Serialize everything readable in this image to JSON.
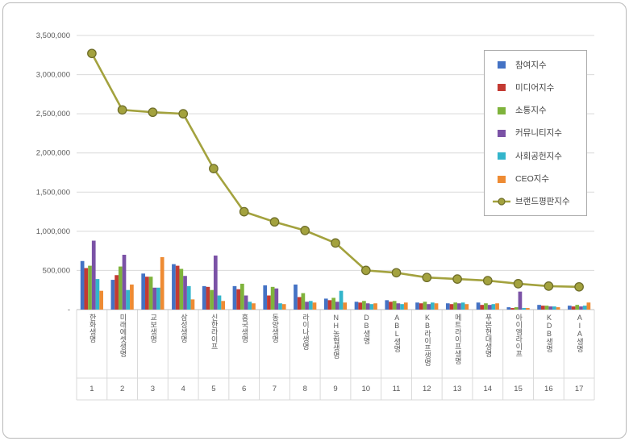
{
  "chart_data": {
    "type": "bar+line",
    "title": "",
    "legend_position": "top-right",
    "grid": "horizontal",
    "categories": [
      "한화생명",
      "미래에셋생명",
      "교보생명",
      "삼성생명",
      "신한라이프",
      "흥국생명",
      "동양생명",
      "라이나생명",
      "NH농협생명",
      "DB생명",
      "ABL생명",
      "KB라이프생명",
      "메트라이프생명",
      "푸본현대생명",
      "아이엠라이프",
      "KDB생명",
      "AIA생명"
    ],
    "ranks": [
      "1",
      "2",
      "3",
      "4",
      "5",
      "6",
      "7",
      "8",
      "9",
      "10",
      "11",
      "12",
      "13",
      "14",
      "15",
      "16",
      "17"
    ],
    "y_axis": {
      "max": 3500000,
      "ticks": [
        {
          "value": 3500000,
          "label": "3,500,000"
        },
        {
          "value": 3000000,
          "label": "3,000,000"
        },
        {
          "value": 2500000,
          "label": "2,500,000"
        },
        {
          "value": 2000000,
          "label": "2,000,000"
        },
        {
          "value": 1500000,
          "label": "1,500,000"
        },
        {
          "value": 1000000,
          "label": "1,000,000"
        },
        {
          "value": 500000,
          "label": "500,000"
        },
        {
          "value": 0,
          "label": "-"
        }
      ]
    },
    "series": [
      {
        "kind": "bar",
        "name": "참여지수",
        "color": "#4472C4",
        "values": [
          620000,
          380000,
          460000,
          580000,
          300000,
          300000,
          310000,
          320000,
          140000,
          100000,
          120000,
          90000,
          80000,
          90000,
          30000,
          60000,
          50000
        ]
      },
      {
        "kind": "bar",
        "name": "미디어지수",
        "color": "#C33A32",
        "values": [
          530000,
          440000,
          420000,
          560000,
          290000,
          260000,
          180000,
          160000,
          120000,
          90000,
          100000,
          80000,
          70000,
          60000,
          20000,
          50000,
          40000
        ]
      },
      {
        "kind": "bar",
        "name": "소통지수",
        "color": "#7FB33C",
        "values": [
          560000,
          550000,
          420000,
          520000,
          250000,
          330000,
          290000,
          210000,
          150000,
          110000,
          110000,
          100000,
          90000,
          80000,
          30000,
          50000,
          60000
        ]
      },
      {
        "kind": "bar",
        "name": "커뮤니티지수",
        "color": "#7B52A6",
        "values": [
          880000,
          700000,
          280000,
          430000,
          690000,
          180000,
          270000,
          100000,
          100000,
          80000,
          80000,
          70000,
          80000,
          60000,
          230000,
          40000,
          40000
        ]
      },
      {
        "kind": "bar",
        "name": "사회공헌지수",
        "color": "#33B5CB",
        "values": [
          390000,
          250000,
          280000,
          300000,
          180000,
          100000,
          80000,
          110000,
          240000,
          70000,
          70000,
          90000,
          90000,
          70000,
          20000,
          40000,
          50000
        ]
      },
      {
        "kind": "bar",
        "name": "CEO지수",
        "color": "#EE8B33",
        "values": [
          240000,
          320000,
          670000,
          130000,
          110000,
          80000,
          70000,
          90000,
          90000,
          80000,
          90000,
          80000,
          70000,
          80000,
          20000,
          30000,
          90000
        ]
      },
      {
        "kind": "line",
        "name": "브랜드평판지수",
        "color": "#A3A23E",
        "marker_edge": "#6F6E2A",
        "values": [
          3270000,
          2550000,
          2520000,
          2500000,
          1800000,
          1250000,
          1120000,
          1010000,
          850000,
          500000,
          470000,
          410000,
          390000,
          370000,
          330000,
          300000,
          290000
        ]
      }
    ]
  },
  "colors": {
    "grid": "#D9D9D9",
    "axis": "#BFBFBF",
    "tick_text": "#595959"
  }
}
